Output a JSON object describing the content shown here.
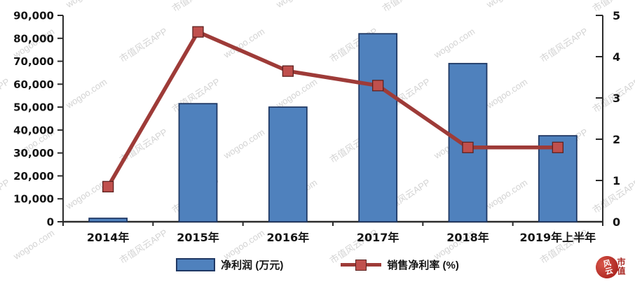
{
  "chart_data": {
    "type": "combo (bar + line)",
    "categories": [
      "2014年",
      "2015年",
      "2016年",
      "2017年",
      "2018年",
      "2019年上半年"
    ],
    "series": [
      {
        "name": "净利润 (万元)",
        "type": "bar",
        "axis": "left",
        "values": [
          1500,
          51500,
          50000,
          82000,
          69000,
          37500
        ],
        "color": "#4f81bd",
        "border_color": "#1f3864"
      },
      {
        "name": "销售净利率 (%)",
        "type": "line",
        "axis": "right",
        "values": [
          0.85,
          4.6,
          3.65,
          3.3,
          1.8,
          1.8
        ],
        "color": "#9e3b38",
        "marker_color": "#c0504d",
        "marker_border": "#5e2220"
      }
    ],
    "left_axis": {
      "min": 0,
      "max": 90000,
      "step": 10000,
      "tick_labels": [
        "0",
        "10,000",
        "20,000",
        "30,000",
        "40,000",
        "50,000",
        "60,000",
        "70,000",
        "80,000",
        "90,000"
      ]
    },
    "right_axis": {
      "min": 0,
      "max": 5,
      "step": 1,
      "tick_labels": [
        "0",
        "1",
        "2",
        "3",
        "4",
        "5"
      ]
    },
    "legend_position": "bottom",
    "grid": false,
    "title": ""
  },
  "watermark": {
    "texts": [
      "市值风云APP",
      "wogoo.com"
    ],
    "color": "#c9c9c9"
  },
  "seal": {
    "text_in_circle": "风云",
    "text_side": "市值"
  }
}
